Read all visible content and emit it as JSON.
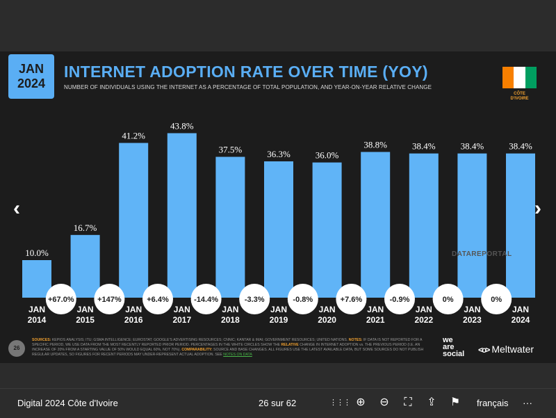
{
  "header": {
    "date_badge_line1": "JAN",
    "date_badge_line2": "2024",
    "title": "INTERNET ADOPTION RATE OVER TIME (YOY)",
    "subtitle": "NUMBER OF INDIVIDUALS USING THE INTERNET AS A PERCENTAGE OF TOTAL POPULATION, AND YEAR-ON-YEAR RELATIVE CHANGE",
    "country_line1": "CÔTE",
    "country_line2": "D'IVOIRE",
    "flag_colors": [
      "#f77f00",
      "#ffffff",
      "#009e60"
    ]
  },
  "chart_data": {
    "type": "bar",
    "categories": [
      "JAN 2014",
      "JAN 2015",
      "JAN 2016",
      "JAN 2017",
      "JAN 2018",
      "JAN 2019",
      "JAN 2020",
      "JAN 2021",
      "JAN 2022",
      "JAN 2023",
      "JAN 2024"
    ],
    "category_lines": [
      [
        "JAN",
        "2014"
      ],
      [
        "JAN",
        "2015"
      ],
      [
        "JAN",
        "2016"
      ],
      [
        "JAN",
        "2017"
      ],
      [
        "JAN",
        "2018"
      ],
      [
        "JAN",
        "2019"
      ],
      [
        "JAN",
        "2020"
      ],
      [
        "JAN",
        "2021"
      ],
      [
        "JAN",
        "2022"
      ],
      [
        "JAN",
        "2023"
      ],
      [
        "JAN",
        "2024"
      ]
    ],
    "values": [
      10.0,
      16.7,
      41.2,
      43.8,
      37.5,
      36.3,
      36.0,
      38.8,
      38.4,
      38.4,
      38.4
    ],
    "value_labels": [
      "10.0%",
      "16.7%",
      "41.2%",
      "43.8%",
      "37.5%",
      "36.3%",
      "36.0%",
      "38.8%",
      "38.4%",
      "38.4%",
      "38.4%"
    ],
    "changes": [
      "+67.0%",
      "+147%",
      "+6.4%",
      "-14.4%",
      "-3.3%",
      "-0.8%",
      "+7.6%",
      "-0.9%",
      "0%",
      "0%"
    ],
    "ylim": [
      0,
      50
    ],
    "grid": false,
    "bar_color": "#60b4f7"
  },
  "watermark": "DATAREPORTAL",
  "footer": {
    "slide_number": "26",
    "sources_label": "SOURCES:",
    "sources_text": "KEPIOS ANALYSIS; ITU; GSMA INTELLIGENCE; EUROSTAT; GOOGLE'S ADVERTISING RESOURCES; CNNIC; KANTAR & IMAI; GOVERNMENT RESOURCES; UNITED NATIONS.",
    "notes_label": "NOTES:",
    "notes_text": "IF DATA IS NOT REPORTED FOR A SPECIFIC PERIOD, WE USE DATA FROM THE MOST RECENTLY REPORTED PRIOR PERIOD. PERCENTAGES IN THE WHITE CIRCLES SHOW THE",
    "relative_word": "RELATIVE",
    "notes_text2": "CHANGE IN INTERNET ADOPTION vs. THE PREVIOUS PERIOD (I.E. AN INCREASE OF 20% FROM A STARTING VALUE OF 50% WOULD EQUAL 60%, NOT 70%).",
    "comparability_label": "COMPARABILITY:",
    "comparability_text": "SOURCE AND BASE CHANGES. ALL FIGURES USE THE LATEST AVAILABLE DATA, BUT SOME SOURCES DO NOT PUBLISH REGULAR UPDATES, SO FIGURES FOR RECENT PERIODS MAY UNDER-REPRESENT ACTUAL ADOPTION. SEE",
    "notes_on_data": "NOTES ON DATA",
    "brand1_line1": "we",
    "brand1_line2": "are",
    "brand1_line3": "social",
    "brand2_icon": "<o>",
    "brand2": "Meltwater"
  },
  "viewer": {
    "prev_icon": "‹",
    "next_icon": "›",
    "doc_title": "Digital 2024 Côte d'Ivoire",
    "page_count": "26 sur 62",
    "grid_icon_glyph": "⋮⋮⋮",
    "zoom_in_glyph": "⊕",
    "zoom_out_glyph": "⊖",
    "fullscreen_glyph": "⛶",
    "share_glyph": "⇪",
    "flag_glyph": "⚑",
    "language": "français",
    "more_glyph": "···"
  }
}
